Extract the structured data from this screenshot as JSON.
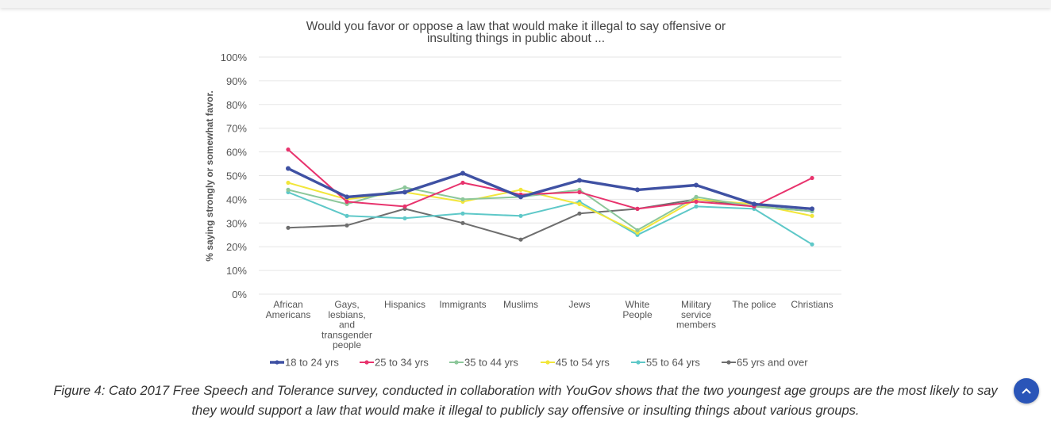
{
  "chart_data": {
    "type": "line",
    "title_lines": [
      "Would you favor or oppose a law that would make it illegal to say offensive or",
      "insulting things in public about ..."
    ],
    "ylabel": "% saying strongly or somewhat favor.",
    "ylim": [
      0,
      100
    ],
    "y_ticks": [
      "0%",
      "10%",
      "20%",
      "30%",
      "40%",
      "50%",
      "60%",
      "70%",
      "80%",
      "90%",
      "100%"
    ],
    "grid": true,
    "legend_position": "bottom",
    "categories": [
      [
        "African",
        "Americans"
      ],
      [
        "Gays,",
        "lesbians,",
        "and",
        "transgender",
        "people"
      ],
      [
        "Hispanics"
      ],
      [
        "Immigrants"
      ],
      [
        "Muslims"
      ],
      [
        "Jews"
      ],
      [
        "White",
        "People"
      ],
      [
        "Military",
        "service",
        "members"
      ],
      [
        "The police"
      ],
      [
        "Christians"
      ]
    ],
    "series": [
      {
        "name": "18 to 24 yrs",
        "color": "#3f51a3",
        "values": [
          53,
          41,
          43,
          51,
          41,
          48,
          44,
          46,
          38,
          36
        ]
      },
      {
        "name": "25 to 34 yrs",
        "color": "#e8336d",
        "values": [
          61,
          39,
          37,
          47,
          42,
          43,
          36,
          39,
          37,
          49
        ]
      },
      {
        "name": "35 to 44 yrs",
        "color": "#8cc79a",
        "values": [
          44,
          38,
          45,
          40,
          41,
          44,
          27,
          41,
          37,
          35
        ]
      },
      {
        "name": "45 to 54 yrs",
        "color": "#f2e63a",
        "values": [
          47,
          40,
          43,
          39,
          44,
          38,
          26,
          40,
          38,
          33
        ]
      },
      {
        "name": "55 to 64 yrs",
        "color": "#5ec8c8",
        "values": [
          43,
          33,
          32,
          34,
          33,
          39,
          25,
          37,
          36,
          21
        ]
      },
      {
        "name": "65 yrs and over",
        "color": "#6e6e6e",
        "values": [
          28,
          29,
          36,
          30,
          23,
          34,
          36,
          40,
          37,
          35
        ]
      }
    ]
  },
  "caption": {
    "line1": "Figure 4: Cato 2017 Free Speech and Tolerance survey, conducted in collaboration with YouGov shows that the two youngest age groups are the most likely to say",
    "line2": "they would support a law that would make it illegal to publicly say offensive or insulting things about various groups."
  },
  "scroll_top_icon": "chevron-up-icon"
}
